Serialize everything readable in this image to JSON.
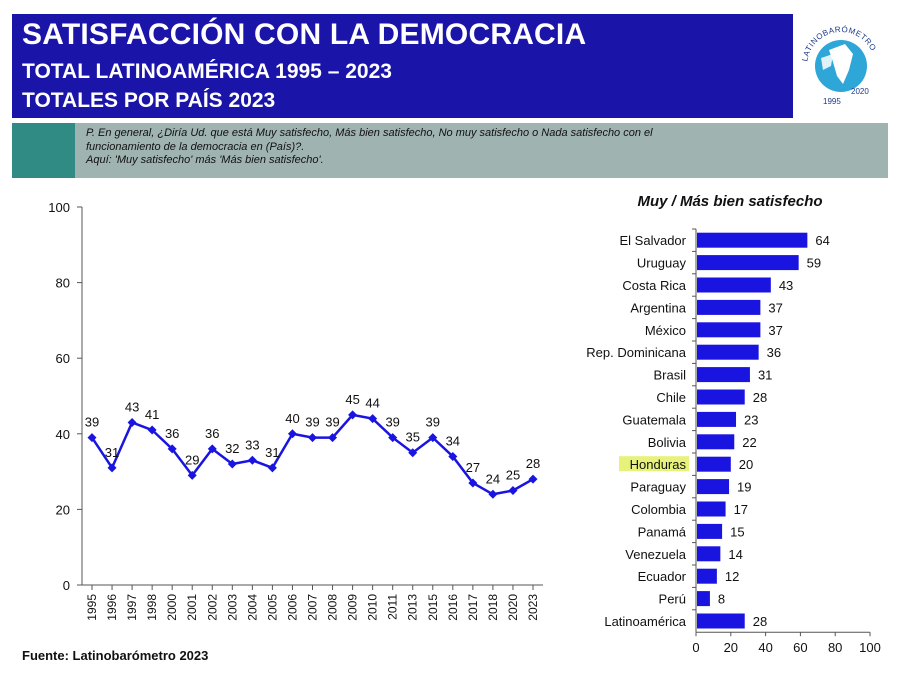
{
  "header": {
    "title": "SATISFACCIÓN CON LA DEMOCRACIA",
    "subtitle1": "TOTAL LATINOAMÉRICA 1995 – 2023",
    "subtitle2": "TOTALES POR PAÍS 2023",
    "bg_color": "#1a14a8"
  },
  "logo": {
    "text_top": "LATINOBARÓMETRO",
    "year_left": "1995",
    "year_right": "2020"
  },
  "question": {
    "line1": "P. En general, ¿Diría Ud. que está Muy satisfecho, Más bien satisfecho, No muy satisfecho o Nada satisfecho con el",
    "line2": "funcionamiento de la democracia en (País)?.",
    "line3": "Aquí: 'Muy satisfecho' más 'Más bien satisfecho'."
  },
  "source": "Fuente: Latinobarómetro 2023",
  "chart_data": [
    {
      "type": "line",
      "x": [
        "1995",
        "1996",
        "1997",
        "1998",
        "2000",
        "2001",
        "2002",
        "2003",
        "2004",
        "2005",
        "2006",
        "2007",
        "2008",
        "2009",
        "2010",
        "2011",
        "2013",
        "2015",
        "2016",
        "2017",
        "2018",
        "2020",
        "2023"
      ],
      "values": [
        39,
        31,
        43,
        41,
        36,
        29,
        36,
        32,
        33,
        31,
        40,
        39,
        39,
        45,
        44,
        39,
        35,
        39,
        34,
        27,
        24,
        25,
        28
      ],
      "ylim": [
        0,
        100
      ],
      "yticks": [
        0,
        20,
        40,
        60,
        80,
        100
      ],
      "color": "#1a14e0",
      "data_labels": true
    },
    {
      "type": "bar",
      "orientation": "horizontal",
      "title": "Muy / Más bien satisfecho",
      "categories": [
        "El Salvador",
        "Uruguay",
        "Costa Rica",
        "Argentina",
        "México",
        "Rep. Dominicana",
        "Brasil",
        "Chile",
        "Guatemala",
        "Bolivia",
        "Honduras",
        "Paraguay",
        "Colombia",
        "Panamá",
        "Venezuela",
        "Ecuador",
        "Perú",
        "Latinoamérica"
      ],
      "values": [
        64,
        59,
        43,
        37,
        37,
        36,
        31,
        28,
        23,
        22,
        20,
        19,
        17,
        15,
        14,
        12,
        8,
        28
      ],
      "xlim": [
        0,
        100
      ],
      "xticks": [
        0,
        20,
        40,
        60,
        80,
        100
      ],
      "color": "#1a14e0",
      "highlight": "Honduras",
      "highlight_color": "#6d8f12"
    }
  ]
}
